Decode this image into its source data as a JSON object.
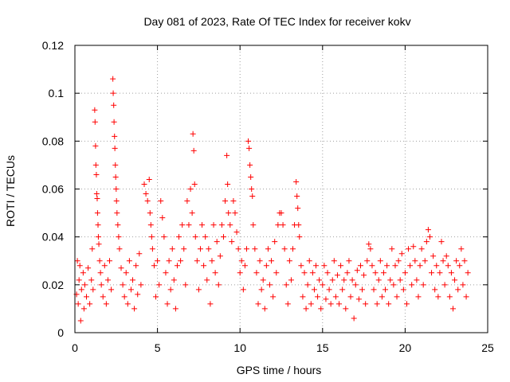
{
  "chart_data": {
    "type": "scatter",
    "title": "Day 081 of 2023, Rate Of TEC Index for receiver kokv",
    "xlabel": "GPS time / hours",
    "ylabel": "ROTI / TECUs",
    "xlim": [
      0,
      25
    ],
    "ylim": [
      0,
      0.12
    ],
    "xticks": [
      0,
      5,
      10,
      15,
      20,
      25
    ],
    "xtick_labels": [
      "0",
      "5",
      "10",
      "15",
      "20",
      "25"
    ],
    "yticks": [
      0,
      0.02,
      0.04,
      0.06,
      0.08,
      0.1,
      0.12
    ],
    "ytick_labels": [
      "0",
      "0.02",
      "0.04",
      "0.06",
      "0.08",
      "0.1",
      "0.12"
    ],
    "grid": true,
    "marker": "plus",
    "color": "#ff0000",
    "series": [
      {
        "name": "ROTI",
        "points": [
          [
            0.1,
            0.016
          ],
          [
            0.15,
            0.03
          ],
          [
            0.2,
            0.012
          ],
          [
            0.25,
            0.022
          ],
          [
            0.3,
            0.028
          ],
          [
            0.35,
            0.005
          ],
          [
            0.4,
            0.018
          ],
          [
            0.5,
            0.025
          ],
          [
            0.55,
            0.01
          ],
          [
            0.6,
            0.02
          ],
          [
            0.7,
            0.015
          ],
          [
            0.8,
            0.027
          ],
          [
            0.9,
            0.012
          ],
          [
            1.0,
            0.022
          ],
          [
            1.05,
            0.035
          ],
          [
            1.1,
            0.018
          ],
          [
            1.2,
            0.093
          ],
          [
            1.22,
            0.088
          ],
          [
            1.25,
            0.078
          ],
          [
            1.27,
            0.07
          ],
          [
            1.3,
            0.066
          ],
          [
            1.32,
            0.058
          ],
          [
            1.35,
            0.056
          ],
          [
            1.37,
            0.05
          ],
          [
            1.4,
            0.045
          ],
          [
            1.42,
            0.04
          ],
          [
            1.45,
            0.037
          ],
          [
            1.5,
            0.03
          ],
          [
            1.55,
            0.025
          ],
          [
            1.6,
            0.02
          ],
          [
            1.7,
            0.015
          ],
          [
            1.8,
            0.028
          ],
          [
            1.9,
            0.012
          ],
          [
            2.0,
            0.022
          ],
          [
            2.1,
            0.03
          ],
          [
            2.2,
            0.018
          ],
          [
            2.3,
            0.106
          ],
          [
            2.32,
            0.1
          ],
          [
            2.35,
            0.095
          ],
          [
            2.37,
            0.088
          ],
          [
            2.4,
            0.082
          ],
          [
            2.42,
            0.077
          ],
          [
            2.45,
            0.07
          ],
          [
            2.47,
            0.065
          ],
          [
            2.5,
            0.06
          ],
          [
            2.52,
            0.055
          ],
          [
            2.55,
            0.05
          ],
          [
            2.6,
            0.045
          ],
          [
            2.65,
            0.04
          ],
          [
            2.7,
            0.035
          ],
          [
            2.8,
            0.027
          ],
          [
            2.9,
            0.02
          ],
          [
            3.0,
            0.015
          ],
          [
            3.1,
            0.025
          ],
          [
            3.2,
            0.012
          ],
          [
            3.3,
            0.03
          ],
          [
            3.4,
            0.018
          ],
          [
            3.5,
            0.022
          ],
          [
            3.6,
            0.01
          ],
          [
            3.7,
            0.028
          ],
          [
            3.8,
            0.016
          ],
          [
            3.9,
            0.033
          ],
          [
            4.0,
            0.02
          ],
          [
            4.2,
            0.062
          ],
          [
            4.3,
            0.058
          ],
          [
            4.4,
            0.055
          ],
          [
            4.5,
            0.064
          ],
          [
            4.55,
            0.05
          ],
          [
            4.6,
            0.045
          ],
          [
            4.65,
            0.04
          ],
          [
            4.7,
            0.035
          ],
          [
            4.8,
            0.028
          ],
          [
            4.9,
            0.015
          ],
          [
            5.0,
            0.03
          ],
          [
            5.1,
            0.02
          ],
          [
            5.2,
            0.055
          ],
          [
            5.3,
            0.048
          ],
          [
            5.4,
            0.04
          ],
          [
            5.5,
            0.025
          ],
          [
            5.6,
            0.012
          ],
          [
            5.7,
            0.03
          ],
          [
            5.8,
            0.018
          ],
          [
            5.9,
            0.035
          ],
          [
            6.0,
            0.022
          ],
          [
            6.1,
            0.01
          ],
          [
            6.2,
            0.028
          ],
          [
            6.3,
            0.04
          ],
          [
            6.4,
            0.03
          ],
          [
            6.5,
            0.045
          ],
          [
            6.6,
            0.035
          ],
          [
            6.7,
            0.02
          ],
          [
            6.8,
            0.055
          ],
          [
            6.9,
            0.045
          ],
          [
            7.0,
            0.06
          ],
          [
            7.1,
            0.05
          ],
          [
            7.15,
            0.083
          ],
          [
            7.2,
            0.076
          ],
          [
            7.25,
            0.062
          ],
          [
            7.3,
            0.04
          ],
          [
            7.4,
            0.03
          ],
          [
            7.5,
            0.018
          ],
          [
            7.6,
            0.035
          ],
          [
            7.7,
            0.045
          ],
          [
            7.8,
            0.028
          ],
          [
            7.9,
            0.04
          ],
          [
            8.0,
            0.022
          ],
          [
            8.1,
            0.035
          ],
          [
            8.2,
            0.012
          ],
          [
            8.3,
            0.03
          ],
          [
            8.4,
            0.045
          ],
          [
            8.5,
            0.025
          ],
          [
            8.6,
            0.038
          ],
          [
            8.7,
            0.02
          ],
          [
            8.8,
            0.032
          ],
          [
            8.9,
            0.045
          ],
          [
            9.0,
            0.04
          ],
          [
            9.1,
            0.055
          ],
          [
            9.2,
            0.074
          ],
          [
            9.25,
            0.062
          ],
          [
            9.3,
            0.05
          ],
          [
            9.4,
            0.045
          ],
          [
            9.5,
            0.038
          ],
          [
            9.6,
            0.055
          ],
          [
            9.7,
            0.05
          ],
          [
            9.8,
            0.042
          ],
          [
            9.9,
            0.035
          ],
          [
            10.0,
            0.025
          ],
          [
            10.1,
            0.03
          ],
          [
            10.2,
            0.018
          ],
          [
            10.3,
            0.028
          ],
          [
            10.4,
            0.035
          ],
          [
            10.5,
            0.08
          ],
          [
            10.55,
            0.077
          ],
          [
            10.6,
            0.07
          ],
          [
            10.65,
            0.065
          ],
          [
            10.7,
            0.06
          ],
          [
            10.75,
            0.057
          ],
          [
            10.8,
            0.045
          ],
          [
            10.9,
            0.035
          ],
          [
            11.0,
            0.025
          ],
          [
            11.1,
            0.012
          ],
          [
            11.2,
            0.03
          ],
          [
            11.3,
            0.018
          ],
          [
            11.4,
            0.022
          ],
          [
            11.5,
            0.01
          ],
          [
            11.6,
            0.028
          ],
          [
            11.7,
            0.035
          ],
          [
            11.8,
            0.02
          ],
          [
            11.9,
            0.03
          ],
          [
            12.0,
            0.015
          ],
          [
            12.1,
            0.038
          ],
          [
            12.2,
            0.025
          ],
          [
            12.3,
            0.045
          ],
          [
            12.4,
            0.05
          ],
          [
            12.5,
            0.05
          ],
          [
            12.6,
            0.045
          ],
          [
            12.7,
            0.035
          ],
          [
            12.8,
            0.02
          ],
          [
            12.9,
            0.012
          ],
          [
            13.0,
            0.03
          ],
          [
            13.1,
            0.022
          ],
          [
            13.2,
            0.035
          ],
          [
            13.3,
            0.045
          ],
          [
            13.4,
            0.063
          ],
          [
            13.45,
            0.057
          ],
          [
            13.5,
            0.052
          ],
          [
            13.55,
            0.045
          ],
          [
            13.6,
            0.04
          ],
          [
            13.7,
            0.028
          ],
          [
            13.8,
            0.015
          ],
          [
            13.9,
            0.025
          ],
          [
            14.0,
            0.01
          ],
          [
            14.1,
            0.02
          ],
          [
            14.2,
            0.03
          ],
          [
            14.3,
            0.012
          ],
          [
            14.4,
            0.025
          ],
          [
            14.5,
            0.018
          ],
          [
            14.6,
            0.028
          ],
          [
            14.7,
            0.015
          ],
          [
            14.8,
            0.022
          ],
          [
            14.9,
            0.01
          ],
          [
            15.0,
            0.02
          ],
          [
            15.1,
            0.028
          ],
          [
            15.2,
            0.014
          ],
          [
            15.3,
            0.025
          ],
          [
            15.4,
            0.018
          ],
          [
            15.5,
            0.012
          ],
          [
            15.6,
            0.022
          ],
          [
            15.7,
            0.03
          ],
          [
            15.8,
            0.015
          ],
          [
            15.9,
            0.024
          ],
          [
            16.0,
            0.012
          ],
          [
            16.1,
            0.028
          ],
          [
            16.2,
            0.018
          ],
          [
            16.3,
            0.022
          ],
          [
            16.4,
            0.01
          ],
          [
            16.5,
            0.025
          ],
          [
            16.6,
            0.03
          ],
          [
            16.7,
            0.015
          ],
          [
            16.8,
            0.022
          ],
          [
            16.9,
            0.006
          ],
          [
            17.0,
            0.02
          ],
          [
            17.1,
            0.026
          ],
          [
            17.2,
            0.014
          ],
          [
            17.3,
            0.028
          ],
          [
            17.4,
            0.018
          ],
          [
            17.5,
            0.024
          ],
          [
            17.6,
            0.012
          ],
          [
            17.7,
            0.03
          ],
          [
            17.8,
            0.037
          ],
          [
            17.9,
            0.035
          ],
          [
            18.0,
            0.028
          ],
          [
            18.1,
            0.018
          ],
          [
            18.2,
            0.025
          ],
          [
            18.3,
            0.012
          ],
          [
            18.4,
            0.022
          ],
          [
            18.5,
            0.03
          ],
          [
            18.6,
            0.015
          ],
          [
            18.7,
            0.025
          ],
          [
            18.8,
            0.018
          ],
          [
            18.9,
            0.028
          ],
          [
            19.0,
            0.012
          ],
          [
            19.1,
            0.022
          ],
          [
            19.2,
            0.035
          ],
          [
            19.3,
            0.02
          ],
          [
            19.4,
            0.028
          ],
          [
            19.5,
            0.015
          ],
          [
            19.6,
            0.03
          ],
          [
            19.7,
            0.022
          ],
          [
            19.8,
            0.033
          ],
          [
            19.9,
            0.018
          ],
          [
            20.0,
            0.025
          ],
          [
            20.1,
            0.012
          ],
          [
            20.2,
            0.035
          ],
          [
            20.3,
            0.028
          ],
          [
            20.4,
            0.02
          ],
          [
            20.5,
            0.036
          ],
          [
            20.6,
            0.03
          ],
          [
            20.7,
            0.022
          ],
          [
            20.8,
            0.015
          ],
          [
            20.9,
            0.028
          ],
          [
            21.0,
            0.035
          ],
          [
            21.1,
            0.02
          ],
          [
            21.2,
            0.03
          ],
          [
            21.3,
            0.038
          ],
          [
            21.4,
            0.043
          ],
          [
            21.5,
            0.04
          ],
          [
            21.6,
            0.025
          ],
          [
            21.7,
            0.032
          ],
          [
            21.8,
            0.018
          ],
          [
            21.9,
            0.028
          ],
          [
            22.0,
            0.015
          ],
          [
            22.1,
            0.025
          ],
          [
            22.2,
            0.038
          ],
          [
            22.3,
            0.03
          ],
          [
            22.4,
            0.02
          ],
          [
            22.5,
            0.032
          ],
          [
            22.6,
            0.028
          ],
          [
            22.7,
            0.015
          ],
          [
            22.8,
            0.025
          ],
          [
            22.9,
            0.01
          ],
          [
            23.0,
            0.022
          ],
          [
            23.1,
            0.03
          ],
          [
            23.2,
            0.018
          ],
          [
            23.3,
            0.028
          ],
          [
            23.4,
            0.035
          ],
          [
            23.5,
            0.02
          ],
          [
            23.6,
            0.03
          ],
          [
            23.7,
            0.015
          ],
          [
            23.8,
            0.025
          ]
        ]
      }
    ]
  }
}
